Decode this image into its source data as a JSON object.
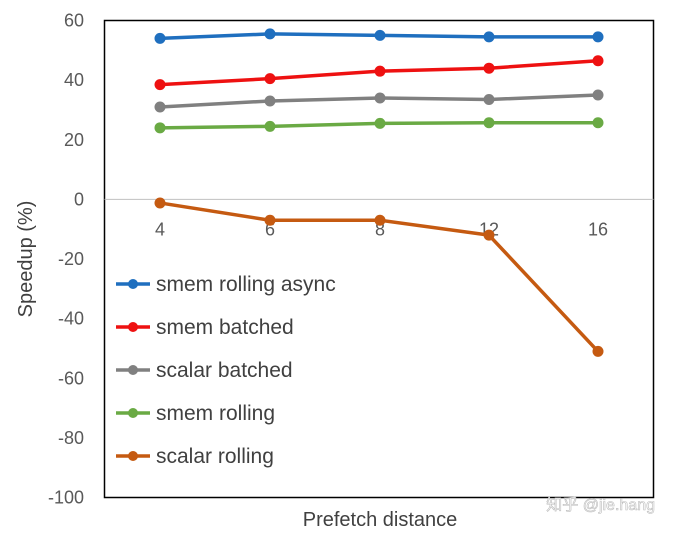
{
  "chart_data": {
    "type": "line",
    "title": "",
    "xlabel": "Prefetch distance",
    "ylabel": "Speedup (%)",
    "categories": [
      "4",
      "6",
      "8",
      "12",
      "16"
    ],
    "ylim": [
      -100,
      60
    ],
    "yticks": [
      60,
      40,
      20,
      0,
      -20,
      -40,
      -60,
      -80,
      -100
    ],
    "ytick_labels": [
      "60",
      "40",
      "20",
      "0",
      "-20",
      "-40",
      "-60",
      "-80",
      "-100"
    ],
    "grid": false,
    "legend_position": "left",
    "series": [
      {
        "name": "smem rolling async",
        "color": "#1f6fbf",
        "values": [
          54,
          55.5,
          55,
          54.5,
          54.5
        ]
      },
      {
        "name": "smem batched",
        "color": "#ee1111",
        "values": [
          38.5,
          40.5,
          43,
          44,
          46.5
        ]
      },
      {
        "name": "scalar batched",
        "color": "#808080",
        "values": [
          31,
          33,
          34,
          33.5,
          35
        ]
      },
      {
        "name": "smem rolling",
        "color": "#6aaa44",
        "values": [
          24,
          24.5,
          25.5,
          25.7,
          25.7
        ]
      },
      {
        "name": "scalar rolling",
        "color": "#c55a11",
        "values": [
          -1.2,
          -7,
          -7,
          -12,
          -51
        ]
      }
    ]
  },
  "watermark": "知乎 @jie.hang"
}
